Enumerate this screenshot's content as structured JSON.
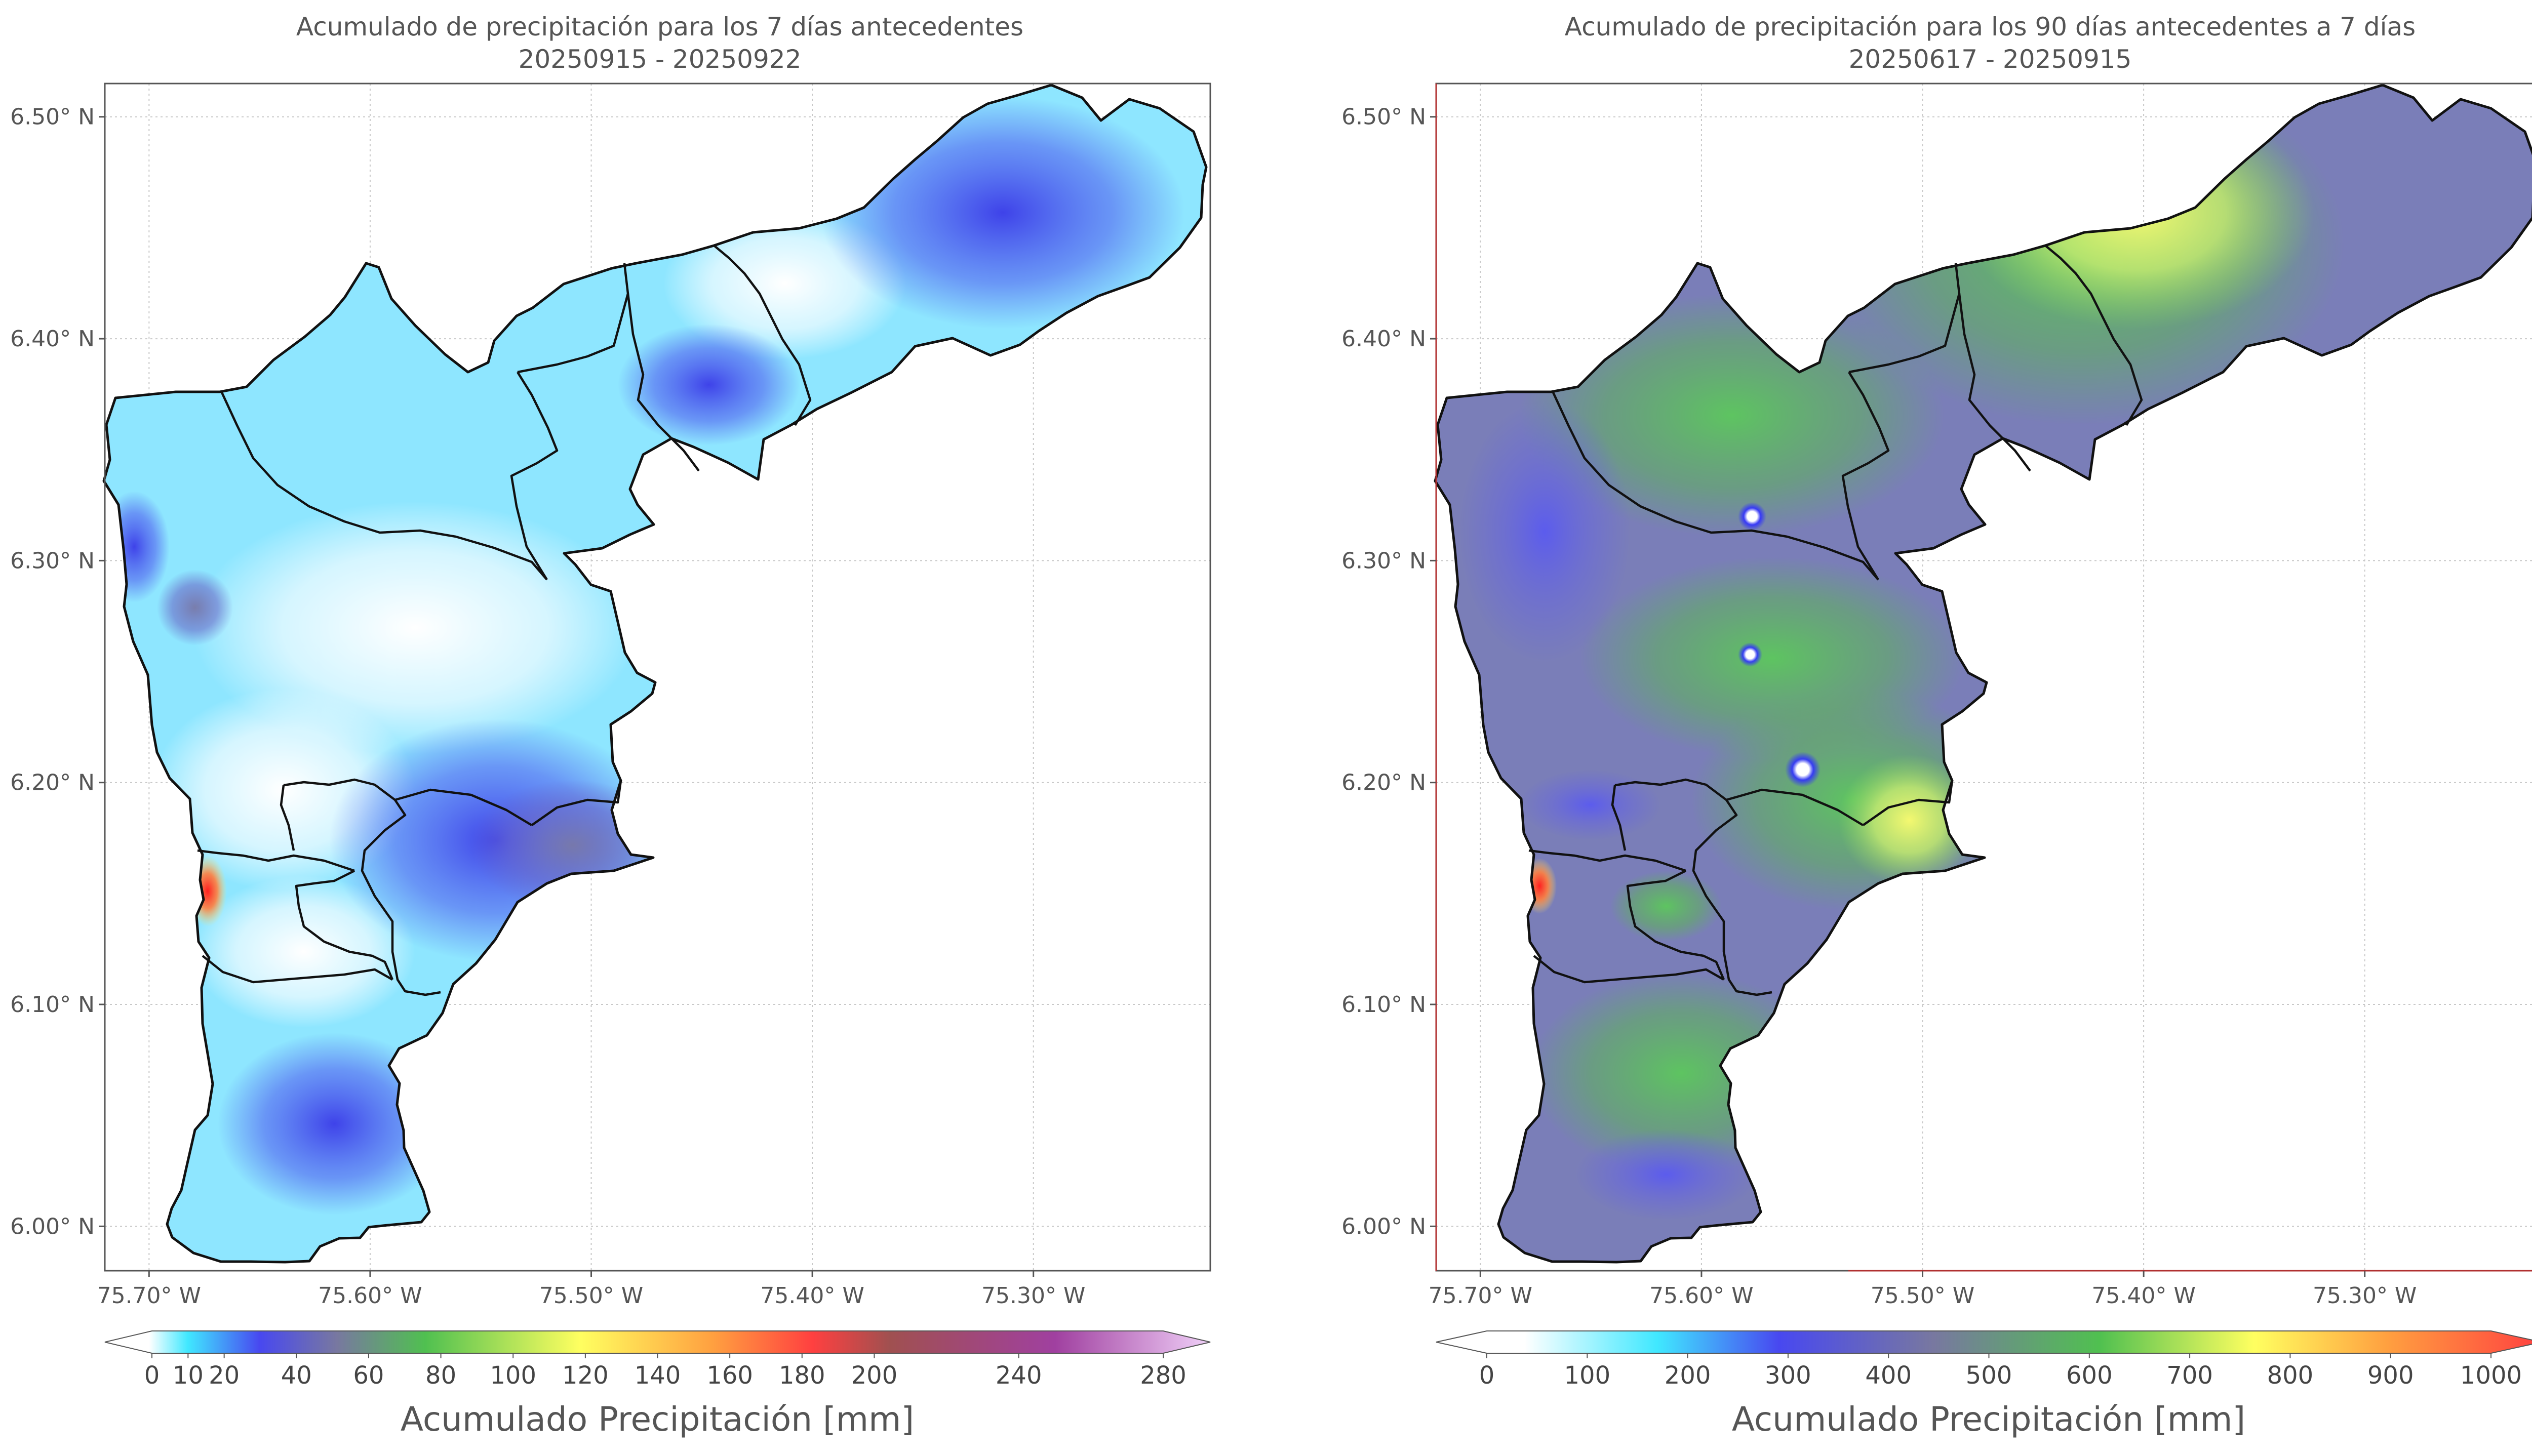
{
  "chart_data": [
    {
      "type": "heatmap",
      "title": "Acumulado de precipitación para los 7 días antecedentes",
      "subtitle": "20250915 - 20250922",
      "xticks": [
        "75.70° W",
        "75.60° W",
        "75.50° W",
        "75.40° W",
        "75.30° W"
      ],
      "xtick_values": [
        -75.7,
        -75.6,
        -75.5,
        -75.4,
        -75.3
      ],
      "yticks": [
        "6.50° N",
        "6.40° N",
        "6.30° N",
        "6.20° N",
        "6.10° N",
        "6.00° N"
      ],
      "ytick_values": [
        6.5,
        6.4,
        6.3,
        6.2,
        6.1,
        6.0
      ],
      "xlim": [
        -75.72,
        -75.22
      ],
      "ylim": [
        5.98,
        6.515
      ],
      "grid": true,
      "colorbar": {
        "label": "Acumulado Precipitación [mm]",
        "ticks": [
          "0",
          "10",
          "20",
          "40",
          "60",
          "80",
          "100",
          "120",
          "140",
          "160",
          "180",
          "200",
          "240",
          "280"
        ],
        "tick_values": [
          0,
          10,
          20,
          40,
          60,
          80,
          100,
          120,
          140,
          160,
          180,
          200,
          240,
          280
        ],
        "range": [
          0,
          280
        ],
        "extend": "both",
        "colors": [
          "#ffffff",
          "#40e8ff",
          "#4848f0",
          "#7878a0",
          "#50c050",
          "#ffff60",
          "#ffa040",
          "#ff4040",
          "#a05050",
          "#a040a0",
          "#f0d0f8"
        ]
      }
    },
    {
      "type": "heatmap",
      "title": "Acumulado de precipitación para los 90 días antecedentes a 7 días",
      "subtitle": "20250617 - 20250915",
      "xticks": [
        "75.70° W",
        "75.60° W",
        "75.50° W",
        "75.40° W",
        "75.30° W"
      ],
      "xtick_values": [
        -75.7,
        -75.6,
        -75.5,
        -75.4,
        -75.3
      ],
      "yticks": [
        "6.50° N",
        "6.40° N",
        "6.30° N",
        "6.20° N",
        "6.10° N",
        "6.00° N"
      ],
      "ytick_values": [
        6.5,
        6.4,
        6.3,
        6.2,
        6.1,
        6.0
      ],
      "xlim": [
        -75.72,
        -75.22
      ],
      "ylim": [
        5.98,
        6.515
      ],
      "grid": true,
      "colorbar": {
        "label": "Acumulado Precipitación [mm]",
        "ticks": [
          "0",
          "100",
          "200",
          "300",
          "400",
          "500",
          "600",
          "700",
          "800",
          "900",
          "1000"
        ],
        "tick_values": [
          0,
          100,
          200,
          300,
          400,
          500,
          600,
          700,
          800,
          900,
          1000
        ],
        "range": [
          0,
          1000
        ],
        "extend": "both",
        "colors": [
          "#ffffff",
          "#40e8ff",
          "#4848f0",
          "#7878a0",
          "#50c050",
          "#ffff60",
          "#ffa040",
          "#ff4040"
        ]
      }
    }
  ]
}
